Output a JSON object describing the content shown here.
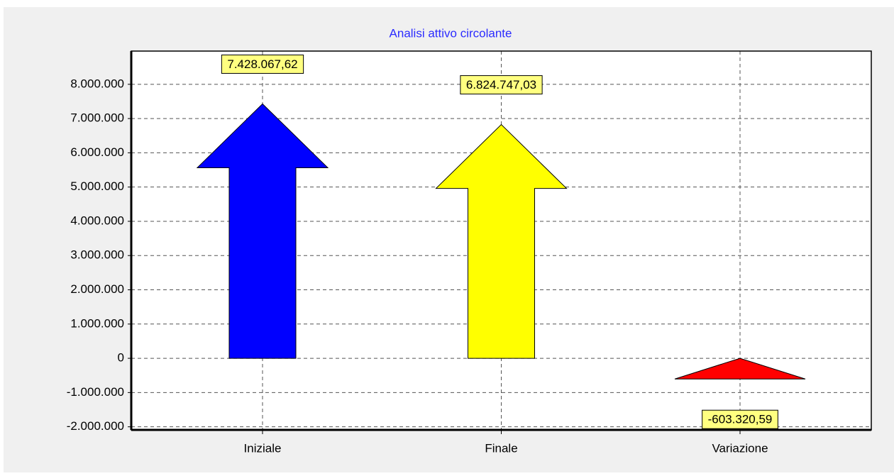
{
  "chart_data": {
    "type": "arrow",
    "title": "Analisi attivo circolante",
    "categories": [
      "Iniziale",
      "Finale",
      "Variazione"
    ],
    "values": [
      7428067.62,
      6824747.03,
      -603320.59
    ],
    "value_labels": [
      "7.428.067,62",
      "6.824.747,03",
      "-603.320,59"
    ],
    "colors": [
      "#0000ff",
      "#ffff00",
      "#ff0000"
    ],
    "ylim": [
      -2090000,
      8970000
    ],
    "yticks": [
      {
        "value": -2000000,
        "label": "-2.000.000"
      },
      {
        "value": -1000000,
        "label": "-1.000.000"
      },
      0,
      {
        "value": 1000000,
        "label": "1.000.000"
      },
      {
        "value": 2000000,
        "label": "2.000.000"
      },
      {
        "value": 3000000,
        "label": "3.000.000"
      },
      {
        "value": 4000000,
        "label": "4.000.000"
      },
      {
        "value": 5000000,
        "label": "5.000.000"
      },
      {
        "value": 6000000,
        "label": "6.000.000"
      },
      {
        "value": 7000000,
        "label": "7.000.000"
      },
      {
        "value": 8000000,
        "label": "8.000.000"
      }
    ],
    "grid": true
  }
}
